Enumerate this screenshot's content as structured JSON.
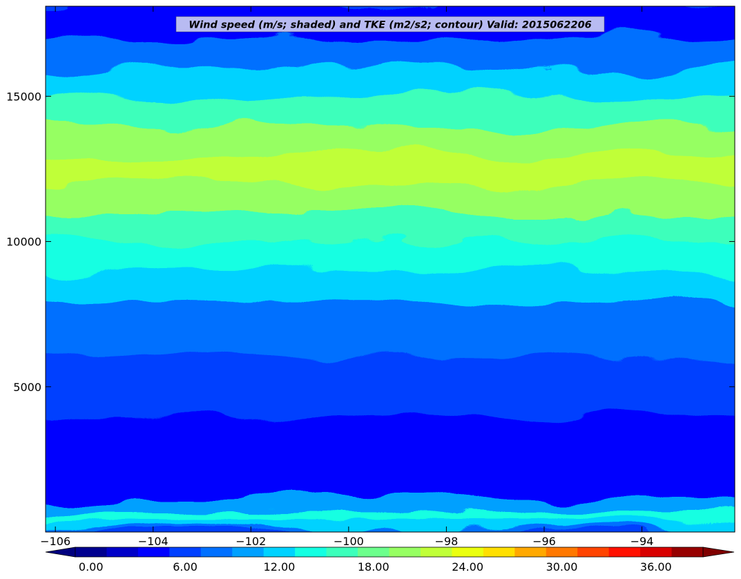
{
  "chart_data": {
    "type": "heatmap",
    "title": "Wind speed (m/s; shaded) and TKE (m2/s2; contour) Valid: 2015062206",
    "xlabel": "",
    "ylabel": "",
    "xlim": [
      -106.2,
      -92.1
    ],
    "ylim": [
      0,
      18100
    ],
    "x_ticks": [
      -106,
      -104,
      -102,
      -100,
      -98,
      -96,
      -94
    ],
    "x_tick_labels": [
      "−106",
      "−104",
      "−102",
      "−100",
      "−98",
      "−96",
      "−94"
    ],
    "y_ticks": [
      5000,
      10000,
      15000
    ],
    "y_tick_labels": [
      "5000",
      "10000",
      "15000"
    ],
    "grid": false,
    "colorbar": {
      "orientation": "horizontal",
      "levels": [
        0,
        2,
        4,
        6,
        8,
        10,
        12,
        14,
        16,
        18,
        20,
        22,
        24,
        26,
        28,
        30,
        32,
        34,
        36,
        38,
        40
      ],
      "tick_values": [
        0,
        6,
        12,
        18,
        24,
        30,
        36
      ],
      "tick_labels": [
        "0.00",
        "6.00",
        "12.00",
        "18.00",
        "24.00",
        "30.00",
        "36.00"
      ],
      "colors": [
        "#00008f",
        "#0000c8",
        "#0000ff",
        "#0040ff",
        "#0070ff",
        "#00a0ff",
        "#00d2ff",
        "#14ffe2",
        "#3cffbb",
        "#6cff8c",
        "#96ff62",
        "#c0ff38",
        "#eaff0e",
        "#ffdf00",
        "#ffa800",
        "#ff7800",
        "#ff4400",
        "#ff1000",
        "#d80000",
        "#960000"
      ],
      "extend": "both",
      "under_color": "#00007f",
      "over_color": "#800000"
    },
    "height_profile": [
      {
        "z": 0,
        "ws": 8
      },
      {
        "z": 300,
        "ws": 13
      },
      {
        "z": 600,
        "ws": 15.5
      },
      {
        "z": 900,
        "ws": 10
      },
      {
        "z": 1500,
        "ws": 5.5
      },
      {
        "z": 2500,
        "ws": 5
      },
      {
        "z": 3500,
        "ws": 5.5
      },
      {
        "z": 4500,
        "ws": 6
      },
      {
        "z": 5500,
        "ws": 7
      },
      {
        "z": 6500,
        "ws": 8.5
      },
      {
        "z": 7500,
        "ws": 9.5
      },
      {
        "z": 8500,
        "ws": 12
      },
      {
        "z": 9500,
        "ws": 14
      },
      {
        "z": 10500,
        "ws": 16
      },
      {
        "z": 11500,
        "ws": 20
      },
      {
        "z": 12500,
        "ws": 22
      },
      {
        "z": 13500,
        "ws": 21
      },
      {
        "z": 14500,
        "ws": 17.5
      },
      {
        "z": 15500,
        "ws": 12
      },
      {
        "z": 16500,
        "ws": 8.5
      },
      {
        "z": 17500,
        "ws": 5
      },
      {
        "z": 18100,
        "ws": 4
      }
    ]
  }
}
